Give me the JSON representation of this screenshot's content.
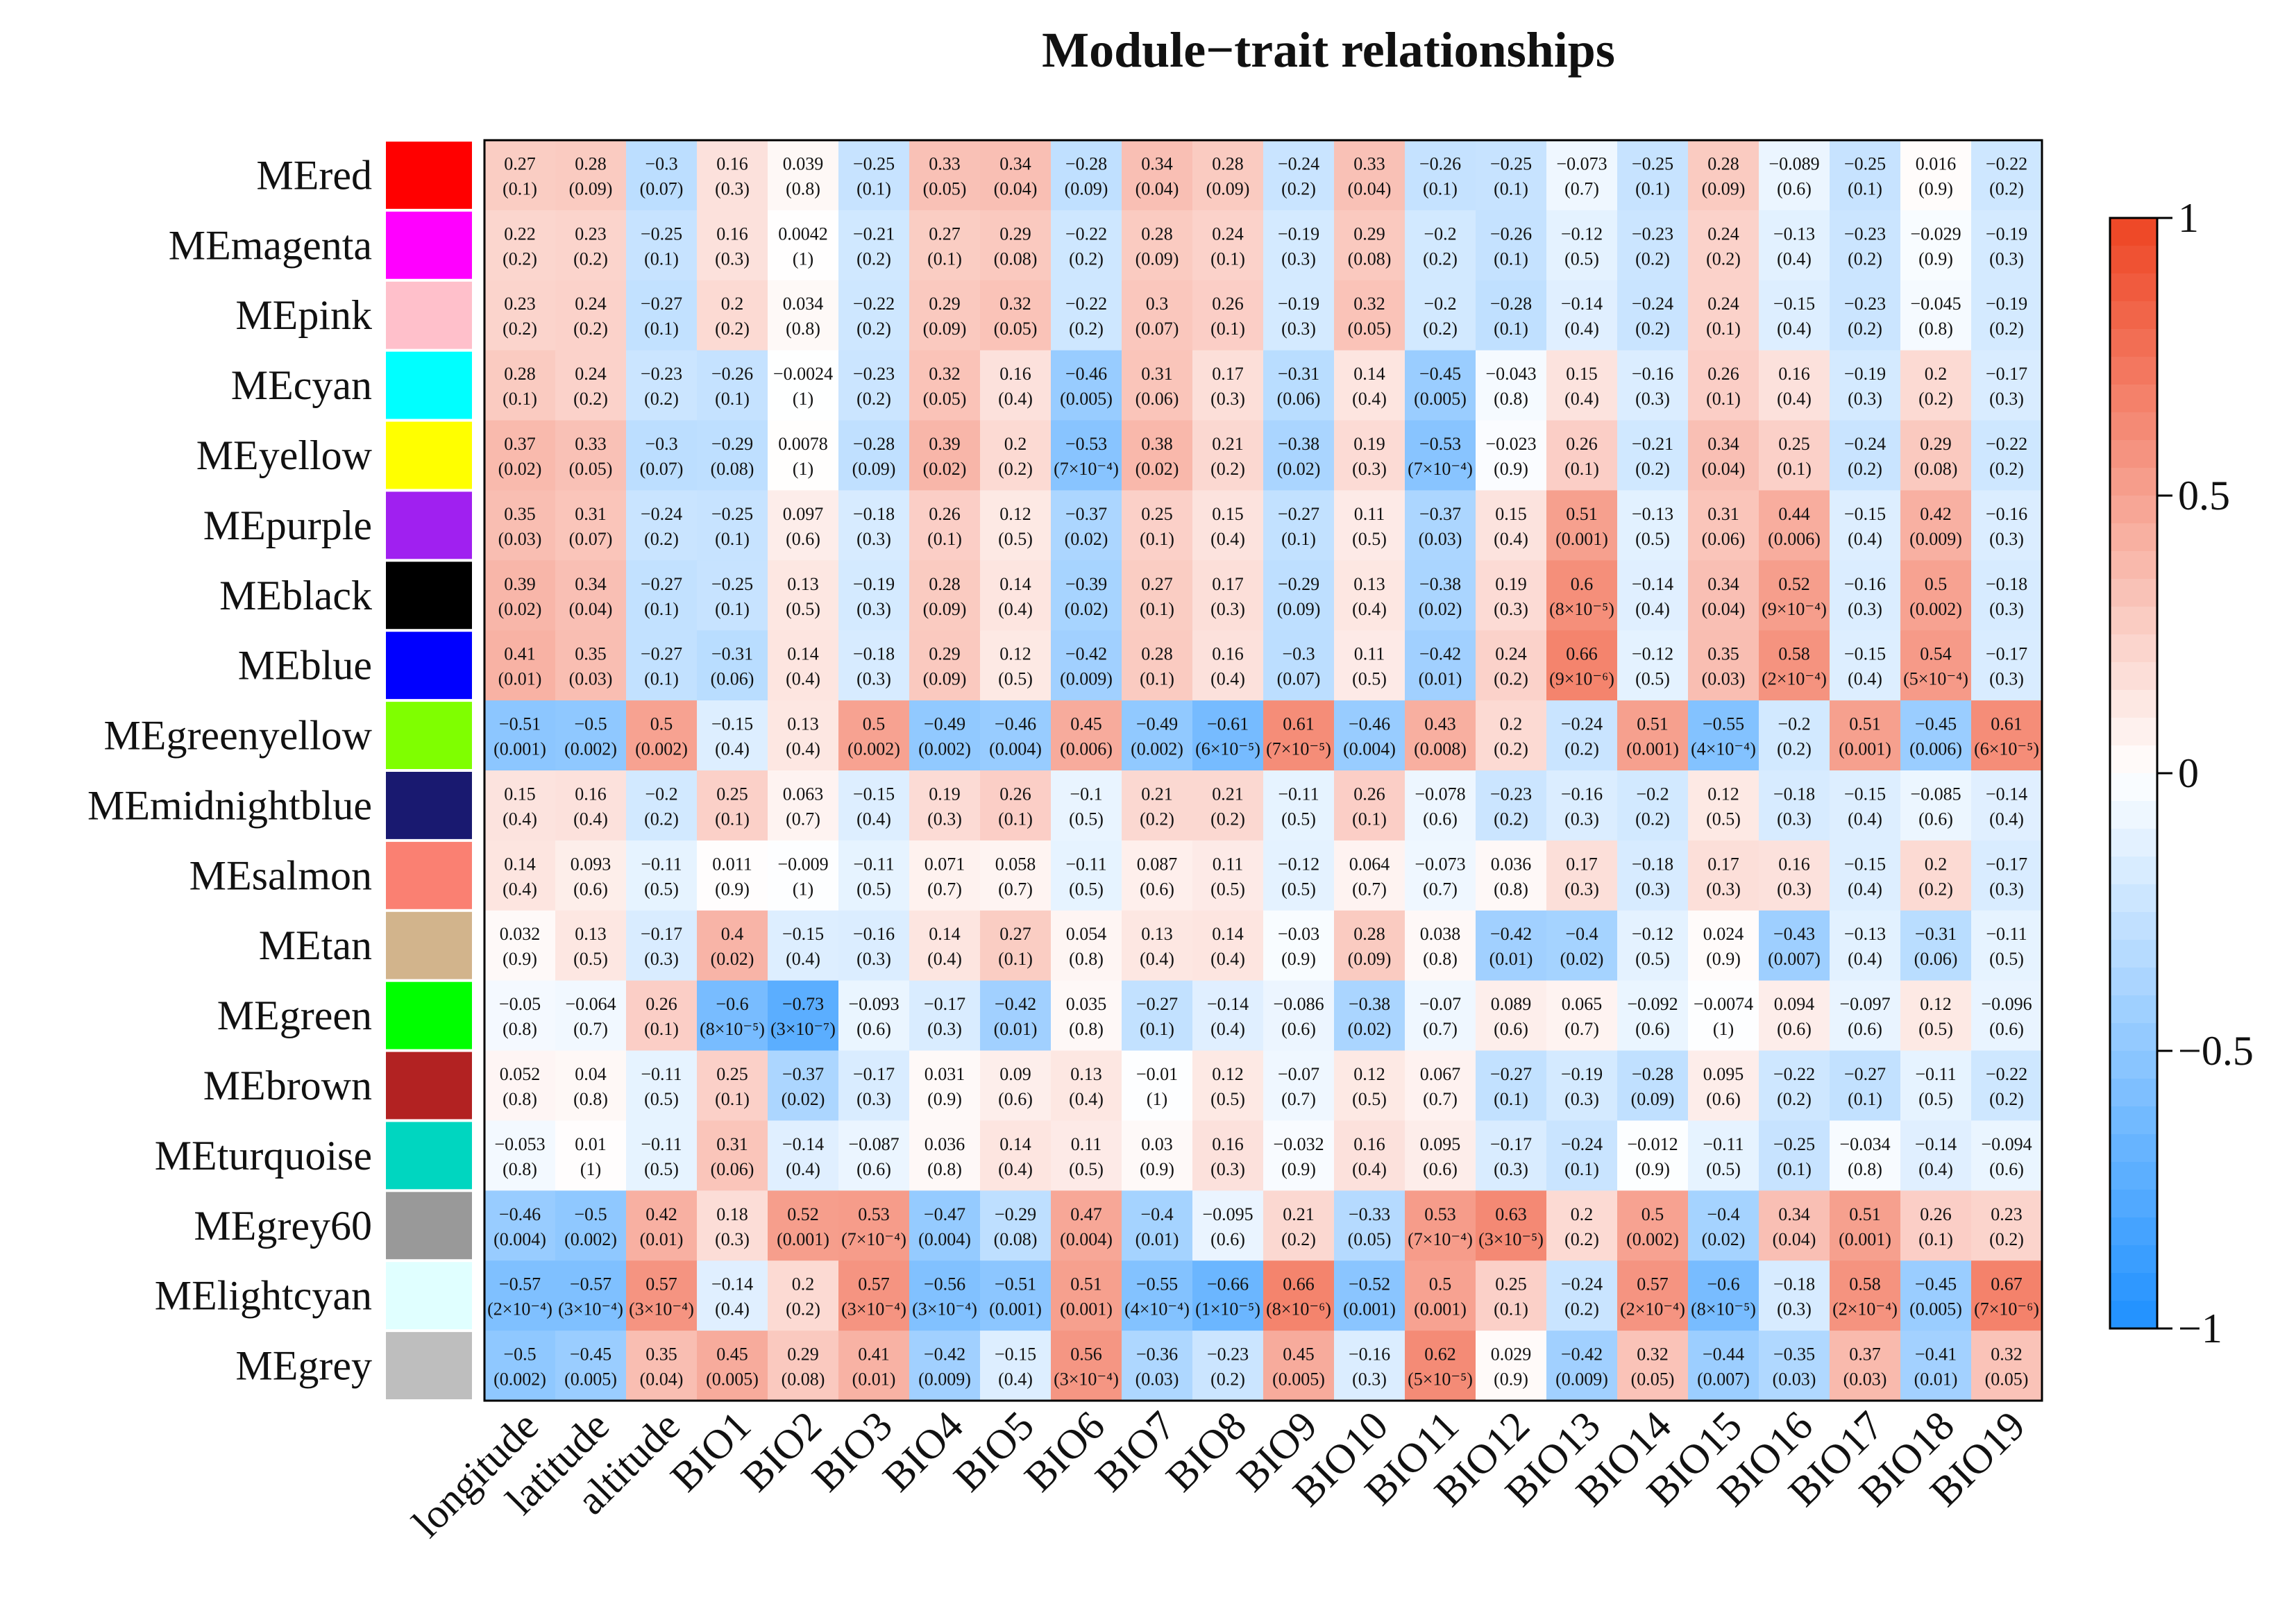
{
  "chart_data": {
    "type": "heatmap",
    "title": "Module−trait relationships",
    "rows": [
      "MEred",
      "MEmagenta",
      "MEpink",
      "MEcyan",
      "MEyellow",
      "MEpurple",
      "MEblack",
      "MEblue",
      "MEgreenyellow",
      "MEmidnightblue",
      "MEsalmon",
      "MEtan",
      "MEgreen",
      "MEbrown",
      "MEturquoise",
      "MEgrey60",
      "MElightcyan",
      "MEgrey"
    ],
    "row_colors": [
      "#ff0000",
      "#ff00ff",
      "#ffc0cb",
      "#00ffff",
      "#ffff00",
      "#a020f0",
      "#000000",
      "#0000ff",
      "#7fff00",
      "#191970",
      "#fa8072",
      "#d2b48c",
      "#00ff00",
      "#b22222",
      "#00d6c0",
      "#999999",
      "#e0ffff",
      "#bebebe"
    ],
    "columns": [
      "longitude",
      "latitude",
      "altitude",
      "BIO1",
      "BIO2",
      "BIO3",
      "BIO4",
      "BIO5",
      "BIO6",
      "BIO7",
      "BIO8",
      "BIO9",
      "BIO10",
      "BIO11",
      "BIO12",
      "BIO13",
      "BIO14",
      "BIO15",
      "BIO16",
      "BIO17",
      "BIO18",
      "BIO19"
    ],
    "values": [
      [
        "0.27",
        "0.28",
        "−0.3",
        "0.16",
        "0.039",
        "−0.25",
        "0.33",
        "0.34",
        "−0.28",
        "0.34",
        "0.28",
        "−0.24",
        "0.33",
        "−0.26",
        "−0.25",
        "−0.073",
        "−0.25",
        "0.28",
        "−0.089",
        "−0.25",
        "0.016",
        "−0.22"
      ],
      [
        "0.22",
        "0.23",
        "−0.25",
        "0.16",
        "0.0042",
        "−0.21",
        "0.27",
        "0.29",
        "−0.22",
        "0.28",
        "0.24",
        "−0.19",
        "0.29",
        "−0.2",
        "−0.26",
        "−0.12",
        "−0.23",
        "0.24",
        "−0.13",
        "−0.23",
        "−0.029",
        "−0.19"
      ],
      [
        "0.23",
        "0.24",
        "−0.27",
        "0.2",
        "0.034",
        "−0.22",
        "0.29",
        "0.32",
        "−0.22",
        "0.3",
        "0.26",
        "−0.19",
        "0.32",
        "−0.2",
        "−0.28",
        "−0.14",
        "−0.24",
        "0.24",
        "−0.15",
        "−0.23",
        "−0.045",
        "−0.19"
      ],
      [
        "0.28",
        "0.24",
        "−0.23",
        "−0.26",
        "−0.0024",
        "−0.23",
        "0.32",
        "0.16",
        "−0.46",
        "0.31",
        "0.17",
        "−0.31",
        "0.14",
        "−0.45",
        "−0.043",
        "0.15",
        "−0.16",
        "0.26",
        "0.16",
        "−0.19",
        "0.2",
        "−0.17"
      ],
      [
        "0.37",
        "0.33",
        "−0.3",
        "−0.29",
        "0.0078",
        "−0.28",
        "0.39",
        "0.2",
        "−0.53",
        "0.38",
        "0.21",
        "−0.38",
        "0.19",
        "−0.53",
        "−0.023",
        "0.26",
        "−0.21",
        "0.34",
        "0.25",
        "−0.24",
        "0.29",
        "−0.22"
      ],
      [
        "0.35",
        "0.31",
        "−0.24",
        "−0.25",
        "0.097",
        "−0.18",
        "0.26",
        "0.12",
        "−0.37",
        "0.25",
        "0.15",
        "−0.27",
        "0.11",
        "−0.37",
        "0.15",
        "0.51",
        "−0.13",
        "0.31",
        "0.44",
        "−0.15",
        "0.42",
        "−0.16"
      ],
      [
        "0.39",
        "0.34",
        "−0.27",
        "−0.25",
        "0.13",
        "−0.19",
        "0.28",
        "0.14",
        "−0.39",
        "0.27",
        "0.17",
        "−0.29",
        "0.13",
        "−0.38",
        "0.19",
        "0.6",
        "−0.14",
        "0.34",
        "0.52",
        "−0.16",
        "0.5",
        "−0.18"
      ],
      [
        "0.41",
        "0.35",
        "−0.27",
        "−0.31",
        "0.14",
        "−0.18",
        "0.29",
        "0.12",
        "−0.42",
        "0.28",
        "0.16",
        "−0.3",
        "0.11",
        "−0.42",
        "0.24",
        "0.66",
        "−0.12",
        "0.35",
        "0.58",
        "−0.15",
        "0.54",
        "−0.17"
      ],
      [
        "−0.51",
        "−0.5",
        "0.5",
        "−0.15",
        "0.13",
        "0.5",
        "−0.49",
        "−0.46",
        "0.45",
        "−0.49",
        "−0.61",
        "0.61",
        "−0.46",
        "0.43",
        "0.2",
        "−0.24",
        "0.51",
        "−0.55",
        "−0.2",
        "0.51",
        "−0.45",
        "0.61"
      ],
      [
        "0.15",
        "0.16",
        "−0.2",
        "0.25",
        "0.063",
        "−0.15",
        "0.19",
        "0.26",
        "−0.1",
        "0.21",
        "0.21",
        "−0.11",
        "0.26",
        "−0.078",
        "−0.23",
        "−0.16",
        "−0.2",
        "0.12",
        "−0.18",
        "−0.15",
        "−0.085",
        "−0.14"
      ],
      [
        "0.14",
        "0.093",
        "−0.11",
        "0.011",
        "−0.009",
        "−0.11",
        "0.071",
        "0.058",
        "−0.11",
        "0.087",
        "0.11",
        "−0.12",
        "0.064",
        "−0.073",
        "0.036",
        "0.17",
        "−0.18",
        "0.17",
        "0.16",
        "−0.15",
        "0.2",
        "−0.17"
      ],
      [
        "0.032",
        "0.13",
        "−0.17",
        "0.4",
        "−0.15",
        "−0.16",
        "0.14",
        "0.27",
        "0.054",
        "0.13",
        "0.14",
        "−0.03",
        "0.28",
        "0.038",
        "−0.42",
        "−0.4",
        "−0.12",
        "0.024",
        "−0.43",
        "−0.13",
        "−0.31",
        "−0.11"
      ],
      [
        "−0.05",
        "−0.064",
        "0.26",
        "−0.6",
        "−0.73",
        "−0.093",
        "−0.17",
        "−0.42",
        "0.035",
        "−0.27",
        "−0.14",
        "−0.086",
        "−0.38",
        "−0.07",
        "0.089",
        "0.065",
        "−0.092",
        "−0.0074",
        "0.094",
        "−0.097",
        "0.12",
        "−0.096"
      ],
      [
        "0.052",
        "0.04",
        "−0.11",
        "0.25",
        "−0.37",
        "−0.17",
        "0.031",
        "0.09",
        "0.13",
        "−0.01",
        "0.12",
        "−0.07",
        "0.12",
        "0.067",
        "−0.27",
        "−0.19",
        "−0.28",
        "0.095",
        "−0.22",
        "−0.27",
        "−0.11",
        "−0.22"
      ],
      [
        "−0.053",
        "0.01",
        "−0.11",
        "0.31",
        "−0.14",
        "−0.087",
        "0.036",
        "0.14",
        "0.11",
        "0.03",
        "0.16",
        "−0.032",
        "0.16",
        "0.095",
        "−0.17",
        "−0.24",
        "−0.012",
        "−0.11",
        "−0.25",
        "−0.034",
        "−0.14",
        "−0.094"
      ],
      [
        "−0.46",
        "−0.5",
        "0.42",
        "0.18",
        "0.52",
        "0.53",
        "−0.47",
        "−0.29",
        "0.47",
        "−0.4",
        "−0.095",
        "0.21",
        "−0.33",
        "0.53",
        "0.63",
        "0.2",
        "0.5",
        "−0.4",
        "0.34",
        "0.51",
        "0.26",
        "0.23"
      ],
      [
        "−0.57",
        "−0.57",
        "0.57",
        "−0.14",
        "0.2",
        "0.57",
        "−0.56",
        "−0.51",
        "0.51",
        "−0.55",
        "−0.66",
        "0.66",
        "−0.52",
        "0.5",
        "0.25",
        "−0.24",
        "0.57",
        "−0.6",
        "−0.18",
        "0.58",
        "−0.45",
        "0.67"
      ],
      [
        "−0.5",
        "−0.45",
        "0.35",
        "0.45",
        "0.29",
        "0.41",
        "−0.42",
        "−0.15",
        "0.56",
        "−0.36",
        "−0.23",
        "0.45",
        "−0.16",
        "0.62",
        "0.029",
        "−0.42",
        "0.32",
        "−0.44",
        "−0.35",
        "0.37",
        "−0.41",
        "0.32"
      ]
    ],
    "pvalues": [
      [
        "(0.1)",
        "(0.09)",
        "(0.07)",
        "(0.3)",
        "(0.8)",
        "(0.1)",
        "(0.05)",
        "(0.04)",
        "(0.09)",
        "(0.04)",
        "(0.09)",
        "(0.2)",
        "(0.04)",
        "(0.1)",
        "(0.1)",
        "(0.7)",
        "(0.1)",
        "(0.09)",
        "(0.6)",
        "(0.1)",
        "(0.9)",
        "(0.2)"
      ],
      [
        "(0.2)",
        "(0.2)",
        "(0.1)",
        "(0.3)",
        "(1)",
        "(0.2)",
        "(0.1)",
        "(0.08)",
        "(0.2)",
        "(0.09)",
        "(0.1)",
        "(0.3)",
        "(0.08)",
        "(0.2)",
        "(0.1)",
        "(0.5)",
        "(0.2)",
        "(0.2)",
        "(0.4)",
        "(0.2)",
        "(0.9)",
        "(0.3)"
      ],
      [
        "(0.2)",
        "(0.2)",
        "(0.1)",
        "(0.2)",
        "(0.8)",
        "(0.2)",
        "(0.09)",
        "(0.05)",
        "(0.2)",
        "(0.07)",
        "(0.1)",
        "(0.3)",
        "(0.05)",
        "(0.2)",
        "(0.1)",
        "(0.4)",
        "(0.2)",
        "(0.1)",
        "(0.4)",
        "(0.2)",
        "(0.8)",
        "(0.2)"
      ],
      [
        "(0.1)",
        "(0.2)",
        "(0.2)",
        "(0.1)",
        "(1)",
        "(0.2)",
        "(0.05)",
        "(0.4)",
        "(0.005)",
        "(0.06)",
        "(0.3)",
        "(0.06)",
        "(0.4)",
        "(0.005)",
        "(0.8)",
        "(0.4)",
        "(0.3)",
        "(0.1)",
        "(0.4)",
        "(0.3)",
        "(0.2)",
        "(0.3)"
      ],
      [
        "(0.02)",
        "(0.05)",
        "(0.07)",
        "(0.08)",
        "(1)",
        "(0.09)",
        "(0.02)",
        "(0.2)",
        "(7×10⁻⁴)",
        "(0.02)",
        "(0.2)",
        "(0.02)",
        "(0.3)",
        "(7×10⁻⁴)",
        "(0.9)",
        "(0.1)",
        "(0.2)",
        "(0.04)",
        "(0.1)",
        "(0.2)",
        "(0.08)",
        "(0.2)"
      ],
      [
        "(0.03)",
        "(0.07)",
        "(0.2)",
        "(0.1)",
        "(0.6)",
        "(0.3)",
        "(0.1)",
        "(0.5)",
        "(0.02)",
        "(0.1)",
        "(0.4)",
        "(0.1)",
        "(0.5)",
        "(0.03)",
        "(0.4)",
        "(0.001)",
        "(0.5)",
        "(0.06)",
        "(0.006)",
        "(0.4)",
        "(0.009)",
        "(0.3)"
      ],
      [
        "(0.02)",
        "(0.04)",
        "(0.1)",
        "(0.1)",
        "(0.5)",
        "(0.3)",
        "(0.09)",
        "(0.4)",
        "(0.02)",
        "(0.1)",
        "(0.3)",
        "(0.09)",
        "(0.4)",
        "(0.02)",
        "(0.3)",
        "(8×10⁻⁵)",
        "(0.4)",
        "(0.04)",
        "(9×10⁻⁴)",
        "(0.3)",
        "(0.002)",
        "(0.3)"
      ],
      [
        "(0.01)",
        "(0.03)",
        "(0.1)",
        "(0.06)",
        "(0.4)",
        "(0.3)",
        "(0.09)",
        "(0.5)",
        "(0.009)",
        "(0.1)",
        "(0.4)",
        "(0.07)",
        "(0.5)",
        "(0.01)",
        "(0.2)",
        "(9×10⁻⁶)",
        "(0.5)",
        "(0.03)",
        "(2×10⁻⁴)",
        "(0.4)",
        "(5×10⁻⁴)",
        "(0.3)"
      ],
      [
        "(0.001)",
        "(0.002)",
        "(0.002)",
        "(0.4)",
        "(0.4)",
        "(0.002)",
        "(0.002)",
        "(0.004)",
        "(0.006)",
        "(0.002)",
        "(6×10⁻⁵)",
        "(7×10⁻⁵)",
        "(0.004)",
        "(0.008)",
        "(0.2)",
        "(0.2)",
        "(0.001)",
        "(4×10⁻⁴)",
        "(0.2)",
        "(0.001)",
        "(0.006)",
        "(6×10⁻⁵)"
      ],
      [
        "(0.4)",
        "(0.4)",
        "(0.2)",
        "(0.1)",
        "(0.7)",
        "(0.4)",
        "(0.3)",
        "(0.1)",
        "(0.5)",
        "(0.2)",
        "(0.2)",
        "(0.5)",
        "(0.1)",
        "(0.6)",
        "(0.2)",
        "(0.3)",
        "(0.2)",
        "(0.5)",
        "(0.3)",
        "(0.4)",
        "(0.6)",
        "(0.4)"
      ],
      [
        "(0.4)",
        "(0.6)",
        "(0.5)",
        "(0.9)",
        "(1)",
        "(0.5)",
        "(0.7)",
        "(0.7)",
        "(0.5)",
        "(0.6)",
        "(0.5)",
        "(0.5)",
        "(0.7)",
        "(0.7)",
        "(0.8)",
        "(0.3)",
        "(0.3)",
        "(0.3)",
        "(0.3)",
        "(0.4)",
        "(0.2)",
        "(0.3)"
      ],
      [
        "(0.9)",
        "(0.5)",
        "(0.3)",
        "(0.02)",
        "(0.4)",
        "(0.3)",
        "(0.4)",
        "(0.1)",
        "(0.8)",
        "(0.4)",
        "(0.4)",
        "(0.9)",
        "(0.09)",
        "(0.8)",
        "(0.01)",
        "(0.02)",
        "(0.5)",
        "(0.9)",
        "(0.007)",
        "(0.4)",
        "(0.06)",
        "(0.5)"
      ],
      [
        "(0.8)",
        "(0.7)",
        "(0.1)",
        "(8×10⁻⁵)",
        "(3×10⁻⁷)",
        "(0.6)",
        "(0.3)",
        "(0.01)",
        "(0.8)",
        "(0.1)",
        "(0.4)",
        "(0.6)",
        "(0.02)",
        "(0.7)",
        "(0.6)",
        "(0.7)",
        "(0.6)",
        "(1)",
        "(0.6)",
        "(0.6)",
        "(0.5)",
        "(0.6)"
      ],
      [
        "(0.8)",
        "(0.8)",
        "(0.5)",
        "(0.1)",
        "(0.02)",
        "(0.3)",
        "(0.9)",
        "(0.6)",
        "(0.4)",
        "(1)",
        "(0.5)",
        "(0.7)",
        "(0.5)",
        "(0.7)",
        "(0.1)",
        "(0.3)",
        "(0.09)",
        "(0.6)",
        "(0.2)",
        "(0.1)",
        "(0.5)",
        "(0.2)"
      ],
      [
        "(0.8)",
        "(1)",
        "(0.5)",
        "(0.06)",
        "(0.4)",
        "(0.6)",
        "(0.8)",
        "(0.4)",
        "(0.5)",
        "(0.9)",
        "(0.3)",
        "(0.9)",
        "(0.4)",
        "(0.6)",
        "(0.3)",
        "(0.1)",
        "(0.9)",
        "(0.5)",
        "(0.1)",
        "(0.8)",
        "(0.4)",
        "(0.6)"
      ],
      [
        "(0.004)",
        "(0.002)",
        "(0.01)",
        "(0.3)",
        "(0.001)",
        "(7×10⁻⁴)",
        "(0.004)",
        "(0.08)",
        "(0.004)",
        "(0.01)",
        "(0.6)",
        "(0.2)",
        "(0.05)",
        "(7×10⁻⁴)",
        "(3×10⁻⁵)",
        "(0.2)",
        "(0.002)",
        "(0.02)",
        "(0.04)",
        "(0.001)",
        "(0.1)",
        "(0.2)"
      ],
      [
        "(2×10⁻⁴)",
        "(3×10⁻⁴)",
        "(3×10⁻⁴)",
        "(0.4)",
        "(0.2)",
        "(3×10⁻⁴)",
        "(3×10⁻⁴)",
        "(0.001)",
        "(0.001)",
        "(4×10⁻⁴)",
        "(1×10⁻⁵)",
        "(8×10⁻⁶)",
        "(0.001)",
        "(0.001)",
        "(0.1)",
        "(0.2)",
        "(2×10⁻⁴)",
        "(8×10⁻⁵)",
        "(0.3)",
        "(2×10⁻⁴)",
        "(0.005)",
        "(7×10⁻⁶)"
      ],
      [
        "(0.002)",
        "(0.005)",
        "(0.04)",
        "(0.005)",
        "(0.08)",
        "(0.01)",
        "(0.009)",
        "(0.4)",
        "(3×10⁻⁴)",
        "(0.03)",
        "(0.2)",
        "(0.005)",
        "(0.3)",
        "(5×10⁻⁵)",
        "(0.9)",
        "(0.009)",
        "(0.05)",
        "(0.007)",
        "(0.03)",
        "(0.03)",
        "(0.01)",
        "(0.05)"
      ]
    ],
    "colorbar": {
      "range": [
        -1,
        1
      ],
      "ticks": [
        1,
        0.5,
        0,
        -0.5,
        -1
      ],
      "tick_labels": [
        "1",
        "0.5",
        "0",
        "−0.5",
        "−1"
      ],
      "low_color": "#1e90ff",
      "mid_color": "#ffffff",
      "high_color": "#ee4422"
    }
  }
}
